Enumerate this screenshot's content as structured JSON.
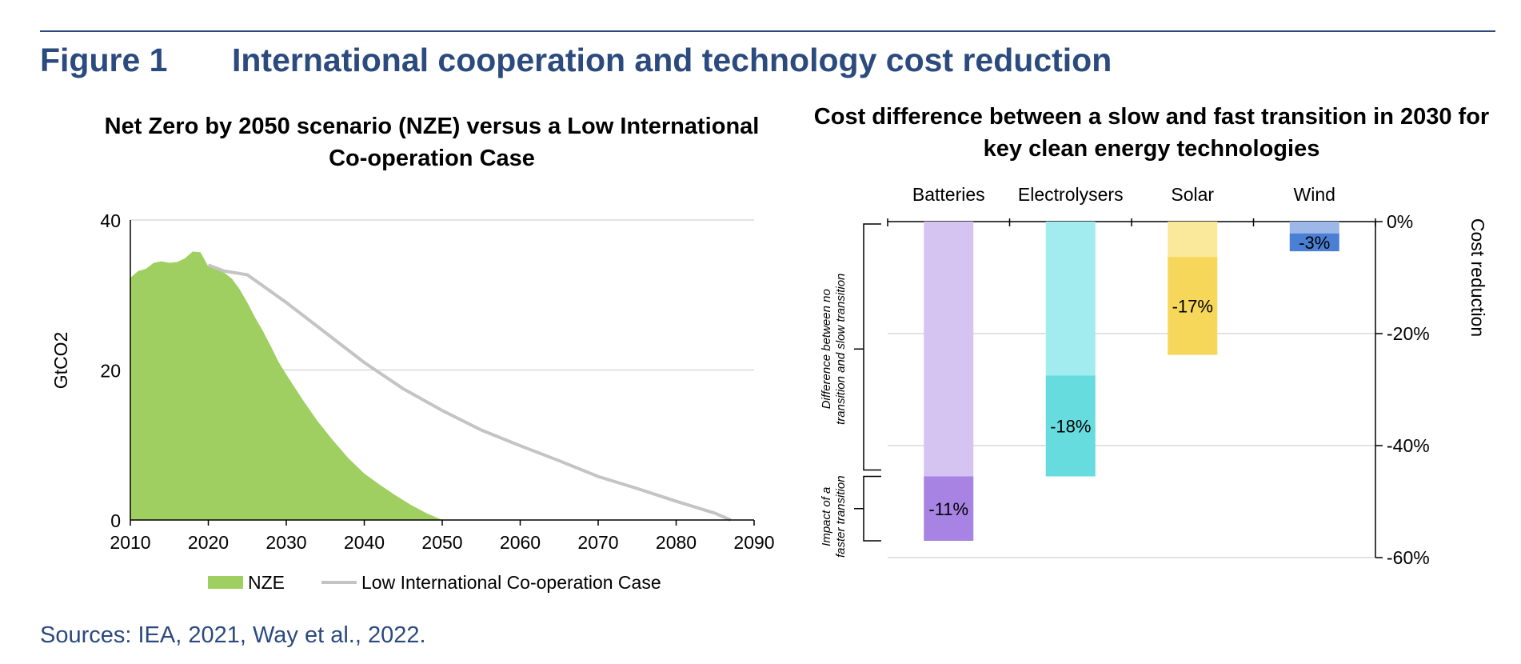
{
  "header": {
    "figure_number": "Figure 1",
    "figure_title": "International cooperation and technology cost reduction"
  },
  "sources": "Sources: IEA, 2021, Way et al., 2022.",
  "colors": {
    "header_blue": "#2b4a7e",
    "nze_green": "#a0cf61",
    "low_coop_grey": "#c4c4c4",
    "batteries_light": "#d5c4f2",
    "batteries_dark": "#a784e3",
    "electrolysers_light": "#a2ebee",
    "electrolysers_dark": "#66dcdf",
    "solar_light": "#fae99a",
    "solar_dark": "#f6d75a",
    "wind_light": "#9db7e8",
    "wind_dark": "#4a7fd4"
  },
  "chart_data": [
    {
      "type": "area",
      "title": "Net Zero by 2050 scenario (NZE) versus a Low International Co-operation Case",
      "xlabel": "",
      "ylabel": "GtCO2",
      "xlim": [
        2010,
        2090
      ],
      "ylim": [
        0,
        40
      ],
      "x_ticks": [
        2010,
        2020,
        2030,
        2040,
        2050,
        2060,
        2070,
        2080,
        2090
      ],
      "y_ticks": [
        0,
        20,
        40
      ],
      "grid": "horizontal",
      "legend_position": "bottom",
      "series": [
        {
          "name": "NZE",
          "type": "area",
          "color": "#a0cf61",
          "x": [
            2010,
            2011,
            2012,
            2013,
            2014,
            2015,
            2016,
            2017,
            2018,
            2019,
            2020,
            2021,
            2022,
            2023,
            2024,
            2025,
            2026,
            2027,
            2028,
            2029,
            2030,
            2032,
            2034,
            2036,
            2038,
            2040,
            2042,
            2044,
            2046,
            2048,
            2050
          ],
          "y": [
            32.3,
            33.2,
            33.5,
            34.3,
            34.5,
            34.3,
            34.4,
            34.9,
            35.8,
            35.7,
            33.8,
            33.6,
            33.0,
            32.2,
            30.8,
            29.0,
            27.0,
            25.2,
            23.2,
            21.1,
            19.4,
            16.2,
            13.2,
            10.6,
            8.2,
            6.2,
            4.7,
            3.3,
            2.0,
            0.9,
            0.0
          ]
        },
        {
          "name": "Low International Co-operation Case",
          "type": "line",
          "color": "#c4c4c4",
          "x": [
            2020,
            2022,
            2025,
            2030,
            2035,
            2040,
            2045,
            2050,
            2055,
            2060,
            2065,
            2070,
            2075,
            2080,
            2085,
            2087
          ],
          "y": [
            34.0,
            33.2,
            32.7,
            29.0,
            25.0,
            21.0,
            17.5,
            14.6,
            12.0,
            9.9,
            7.9,
            5.8,
            4.2,
            2.5,
            0.9,
            0.0
          ]
        }
      ]
    },
    {
      "type": "bar",
      "stacked": true,
      "title": "Cost difference between a slow and fast transition in 2030 for key clean energy technologies",
      "ylabel": "Cost reduction",
      "y_axis_side": "right",
      "ylim": [
        -60,
        0
      ],
      "y_ticks": [
        0,
        -20,
        -40,
        -60
      ],
      "y_tick_labels": [
        "0%",
        "-20%",
        "-40%",
        "-60%"
      ],
      "grid": "horizontal",
      "categories": [
        "Batteries",
        "Electrolysers",
        "Solar",
        "Wind"
      ],
      "series": [
        {
          "name": "Difference between no transition and slow transition",
          "values": [
            -45.5,
            -27.5,
            -6.3,
            -2.1
          ],
          "colors": [
            "#d5c4f2",
            "#a2ebee",
            "#fae99a",
            "#9db7e8"
          ]
        },
        {
          "name": "Impact of a faster transition",
          "values": [
            -11.5,
            -18.0,
            -17.5,
            -3.2
          ],
          "colors": [
            "#a784e3",
            "#66dcdf",
            "#f6d75a",
            "#4a7fd4"
          ],
          "labels": [
            "-11%",
            "-18%",
            "-17%",
            "-3%"
          ]
        }
      ],
      "bracket_labels": [
        "Difference between no transition and slow transition",
        "Impact of a faster transition"
      ]
    }
  ]
}
